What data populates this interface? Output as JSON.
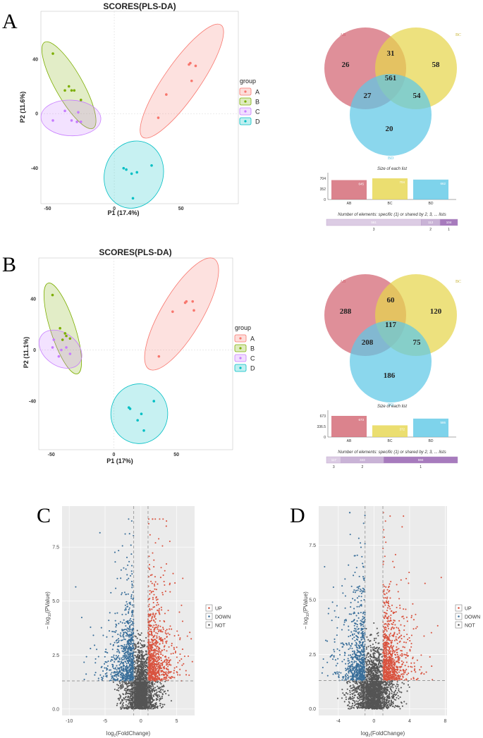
{
  "panels": {
    "A": "A",
    "B": "B",
    "C": "C",
    "D": "D"
  },
  "colors": {
    "A": "#f8766d",
    "B": "#7cae00",
    "C": "#c77cff",
    "D": "#00bfc4",
    "venn_AB": "#d26471",
    "venn_BC": "#e6d64c",
    "venn_BD": "#5ec8e6",
    "up": "#d9533f",
    "down": "#3a6f9a",
    "not": "#555555",
    "list_bar": "#dccce4",
    "list_bar2": "#c9b3d6",
    "list_bar3": "#a77bbd"
  },
  "chart_data": [
    {
      "id": "pca-A",
      "type": "scatter",
      "title": "SCORES(PLS-DA)",
      "xlabel": "P1 (17.4%)",
      "ylabel": "P2 (11.6%)",
      "xlim": [
        -55,
        93
      ],
      "ylim": [
        -66,
        75
      ],
      "xticks": [
        -50,
        0,
        50
      ],
      "yticks": [
        -40,
        0,
        40
      ],
      "legend_title": "group",
      "groups": [
        "A",
        "B",
        "C",
        "D"
      ],
      "points": {
        "A": [
          [
            57,
            37
          ],
          [
            61,
            35
          ],
          [
            56,
            36
          ],
          [
            58,
            24
          ],
          [
            39,
            14
          ],
          [
            33,
            -3
          ]
        ],
        "B": [
          [
            -46,
            44
          ],
          [
            -37,
            17
          ],
          [
            -34,
            20
          ],
          [
            -32,
            17
          ],
          [
            -30,
            17
          ],
          [
            -25,
            10
          ]
        ],
        "C": [
          [
            -46,
            -5
          ],
          [
            -37,
            2
          ],
          [
            -32,
            -5
          ],
          [
            -28,
            -6
          ],
          [
            -25,
            -6
          ],
          [
            -27,
            1
          ]
        ],
        "D": [
          [
            7,
            -40
          ],
          [
            9,
            -41
          ],
          [
            13,
            -44
          ],
          [
            17,
            -43
          ],
          [
            28,
            -38
          ],
          [
            14,
            -62
          ]
        ]
      }
    },
    {
      "id": "pca-B",
      "type": "scatter",
      "title": "SCORES(PLS-DA)",
      "xlabel": "P1 (17%)",
      "ylabel": "P2 (11.1%)",
      "xlim": [
        -60,
        95
      ],
      "ylim": [
        -78,
        72
      ],
      "xticks": [
        -50,
        0,
        50
      ],
      "yticks": [
        -40,
        0,
        40
      ],
      "legend_title": "group",
      "groups": [
        "A",
        "B",
        "C",
        "D"
      ],
      "points": {
        "A": [
          [
            57,
            37
          ],
          [
            63,
            38
          ],
          [
            58,
            38
          ],
          [
            64,
            31
          ],
          [
            47,
            30
          ],
          [
            36,
            -5
          ]
        ],
        "B": [
          [
            -49,
            43
          ],
          [
            -43,
            17
          ],
          [
            -39,
            13
          ],
          [
            -38,
            11
          ],
          [
            -41,
            8
          ],
          [
            -35,
            9
          ]
        ],
        "C": [
          [
            -48,
            8
          ],
          [
            -42,
            0
          ],
          [
            -38,
            2
          ],
          [
            -35,
            -3
          ],
          [
            -44,
            -5
          ],
          [
            -49,
            2
          ]
        ],
        "D": [
          [
            12,
            -45
          ],
          [
            13,
            -46
          ],
          [
            19,
            -55
          ],
          [
            22,
            -50
          ],
          [
            32,
            -40
          ],
          [
            24,
            -63
          ]
        ]
      }
    },
    {
      "id": "venn-A",
      "type": "venn",
      "sets": [
        "AB",
        "BC",
        "BD"
      ],
      "regions": {
        "only_AB": 26,
        "AB_BC": 31,
        "only_BC": 58,
        "all": 561,
        "AB_BD": 27,
        "BC_BD": 54,
        "only_BD": 20
      },
      "size_title": "Size of each list",
      "sizes": [
        645,
        704,
        662
      ],
      "size_axis": [
        0,
        352,
        704
      ],
      "shared_title": "Number of elements: specific (1) or shared by 2, 3, ... lists",
      "shared_values": [
        561,
        112,
        104
      ],
      "shared_labels": [
        "3",
        "2",
        "1"
      ]
    },
    {
      "id": "venn-B",
      "type": "venn",
      "sets": [
        "AB",
        "BC",
        "BD"
      ],
      "regions": {
        "only_AB": 288,
        "AB_BC": 60,
        "only_BC": 120,
        "all": 117,
        "AB_BD": 208,
        "BC_BD": 75,
        "only_BD": 186
      },
      "size_title": "Size of each list",
      "sizes": [
        673,
        372,
        586
      ],
      "size_axis": [
        0,
        336.5,
        673
      ],
      "shared_title": "Number of elements: specific (1) or shared by 2, 3, ... lists",
      "shared_values": [
        117,
        343,
        594
      ],
      "shared_labels": [
        "3",
        "2",
        "1"
      ]
    },
    {
      "id": "volcano-C",
      "type": "scatter",
      "xlabel": "log2(FoldChange)",
      "ylabel": "-log10(PValue)",
      "xlim": [
        -11,
        7.5
      ],
      "ylim": [
        -0.3,
        9.4
      ],
      "xticks": [
        -10,
        -5,
        0,
        5
      ],
      "yticks": [
        0.0,
        2.5,
        5.0,
        7.5
      ],
      "fc_threshold": 1,
      "p_threshold": 1.3,
      "legend": [
        "UP",
        "DOWN",
        "NOT"
      ],
      "counts": {
        "up": 900,
        "down": 780,
        "not": 2200
      },
      "spread": {
        "up": 1.6,
        "down": 1.6,
        "max_y": 8.8
      }
    },
    {
      "id": "volcano-D",
      "type": "scatter",
      "xlabel": "log2(FoldChange)",
      "ylabel": "-log10(PValue)",
      "xlim": [
        -6.2,
        8.2
      ],
      "ylim": [
        -0.3,
        9.3
      ],
      "xticks": [
        -4,
        0,
        4,
        8
      ],
      "yticks": [
        0.0,
        2.5,
        5.0,
        7.5
      ],
      "fc_threshold": 1,
      "p_threshold": 1.3,
      "legend": [
        "UP",
        "DOWN",
        "NOT"
      ],
      "counts": {
        "up": 850,
        "down": 700,
        "not": 2200
      },
      "spread": {
        "up": 1.4,
        "down": 1.3,
        "max_y": 9.0
      }
    }
  ]
}
